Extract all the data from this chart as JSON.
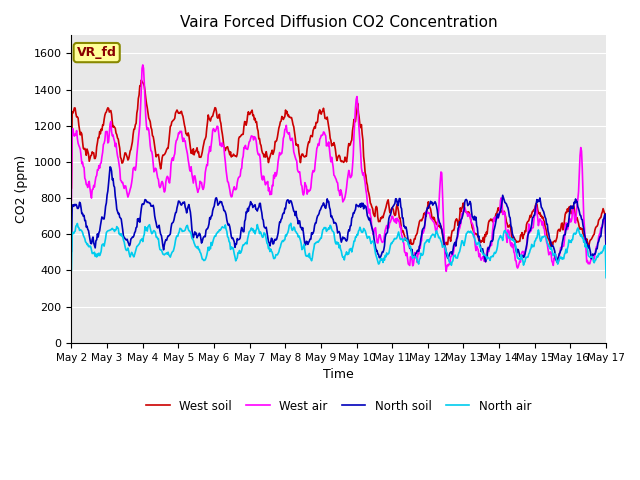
{
  "title": "Vaira Forced Diffusion CO2 Concentration",
  "xlabel": "Time",
  "ylabel": "CO2 (ppm)",
  "ylim": [
    0,
    1700
  ],
  "yticks": [
    0,
    200,
    400,
    600,
    800,
    1000,
    1200,
    1400,
    1600
  ],
  "xtick_labels": [
    "May 2",
    "May 3",
    "May 4",
    "May 5",
    "May 6",
    "May 7",
    "May 8",
    "May 9",
    "May 10",
    "May 11",
    "May 12",
    "May 13",
    "May 14",
    "May 15",
    "May 16",
    "May 17"
  ],
  "colors": {
    "west_soil": "#cc0000",
    "west_air": "#ff00ff",
    "north_soil": "#0000bb",
    "north_air": "#00ccee"
  },
  "legend_labels": [
    "West soil",
    "West air",
    "North soil",
    "North air"
  ],
  "annotation_text": "VR_fd",
  "annotation_box_color": "#ffff99",
  "annotation_border_color": "#888800",
  "bg_color": "#e8e8e8",
  "linewidth": 1.2,
  "n_points": 720
}
